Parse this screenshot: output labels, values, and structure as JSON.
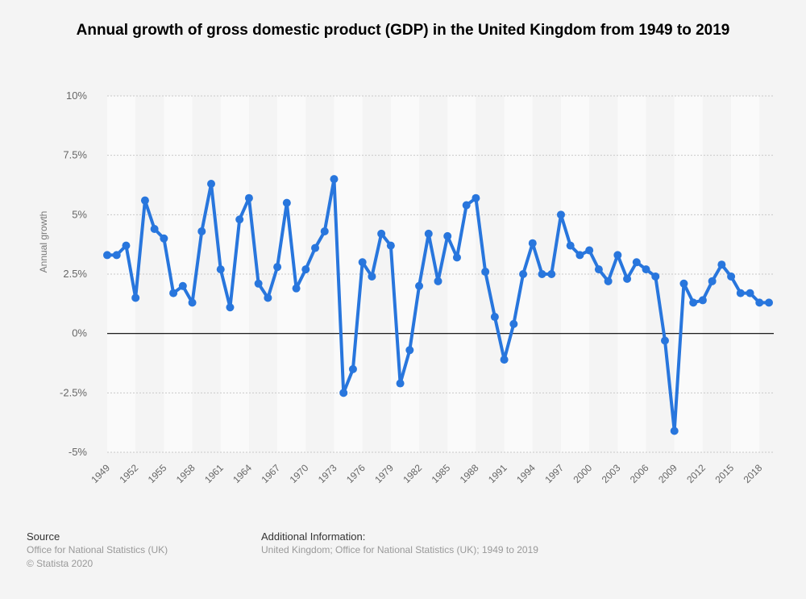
{
  "chart_data": {
    "type": "line",
    "title": "Annual growth of gross domestic product (GDP) in the United Kingdom from 1949 to 2019",
    "xlabel": "",
    "ylabel": "Annual growth",
    "ylim": [
      -5,
      10
    ],
    "yticks": [
      -5,
      -2.5,
      0,
      2.5,
      5,
      7.5,
      10
    ],
    "ytick_labels": [
      "-5%",
      "-2.5%",
      "0%",
      "2.5%",
      "5%",
      "7.5%",
      "10%"
    ],
    "xtick_labels": [
      "1949",
      "1952",
      "1955",
      "1958",
      "1961",
      "1964",
      "1967",
      "1970",
      "1973",
      "1976",
      "1979",
      "1982",
      "1985",
      "1988",
      "1991",
      "1994",
      "1997",
      "2000",
      "2003",
      "2006",
      "2009",
      "2012",
      "2015",
      "2018"
    ],
    "grid": true,
    "color": "#2876dd",
    "x": [
      1949,
      1950,
      1951,
      1952,
      1953,
      1954,
      1955,
      1956,
      1957,
      1958,
      1959,
      1960,
      1961,
      1962,
      1963,
      1964,
      1965,
      1966,
      1967,
      1968,
      1969,
      1970,
      1971,
      1972,
      1973,
      1974,
      1975,
      1976,
      1977,
      1978,
      1979,
      1980,
      1981,
      1982,
      1983,
      1984,
      1985,
      1986,
      1987,
      1988,
      1989,
      1990,
      1991,
      1992,
      1993,
      1994,
      1995,
      1996,
      1997,
      1998,
      1999,
      2000,
      2001,
      2002,
      2003,
      2004,
      2005,
      2006,
      2007,
      2008,
      2009,
      2010,
      2011,
      2012,
      2013,
      2014,
      2015,
      2016,
      2017,
      2018,
      2019
    ],
    "values": [
      3.3,
      3.3,
      3.7,
      1.5,
      5.6,
      4.4,
      4.0,
      1.7,
      2.0,
      1.3,
      4.3,
      6.3,
      2.7,
      1.1,
      4.8,
      5.7,
      2.1,
      1.5,
      2.8,
      5.5,
      1.9,
      2.7,
      3.6,
      4.3,
      6.5,
      -2.5,
      -1.5,
      3.0,
      2.4,
      4.2,
      3.7,
      -2.1,
      -0.7,
      2.0,
      4.2,
      2.2,
      4.1,
      3.2,
      5.4,
      5.7,
      2.6,
      0.7,
      -1.1,
      0.4,
      2.5,
      3.8,
      2.5,
      2.5,
      5.0,
      3.7,
      3.3,
      3.5,
      2.7,
      2.2,
      3.3,
      2.3,
      3.0,
      2.7,
      2.4,
      -0.3,
      -4.1,
      2.1,
      1.3,
      1.4,
      2.2,
      2.9,
      2.4,
      1.7,
      1.7,
      1.3,
      1.3
    ]
  },
  "footer": {
    "source_heading": "Source",
    "source_text": "Office for National Statistics (UK)",
    "copyright": "© Statista 2020",
    "info_heading": "Additional Information:",
    "info_text": "United Kingdom; Office for National Statistics (UK); 1949 to 2019"
  }
}
